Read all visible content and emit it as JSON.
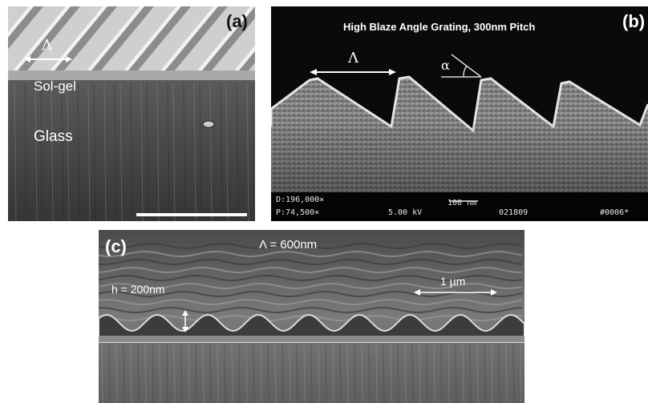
{
  "panel_a": {
    "label": "(a)",
    "period_symbol": "Λ",
    "layer_top": "Sol-gel",
    "layer_bottom": "Glass"
  },
  "panel_b": {
    "label": "(b)",
    "title": "High Blaze Angle Grating, 300nm Pitch",
    "period_symbol": "Λ",
    "angle_symbol": "α",
    "meta_d": "D:196,000×",
    "meta_p": "P:74,500×",
    "meta_kv": "5.00 kV",
    "meta_scale": "100 nm",
    "meta_id": "021809",
    "meta_num": "#0006*"
  },
  "panel_c": {
    "label": "(c)",
    "period_text": "Λ = 600nm",
    "height_text": "h = 200nm",
    "scale_text": "1 µm"
  }
}
